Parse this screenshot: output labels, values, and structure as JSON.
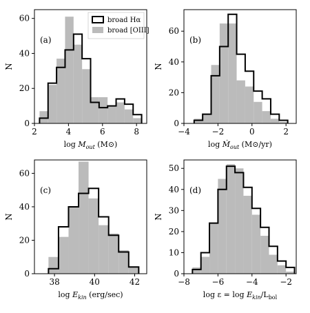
{
  "colors": {
    "halpha": "#000000",
    "oiii": "#bbbbbb"
  },
  "legend": {
    "halpha": "broad Hα",
    "oiii": "broad [OIII]"
  },
  "chart_data": [
    {
      "type": "histogram",
      "label": "(a)",
      "xlabel": "log M",
      "xsub": "out",
      "xunit": " (M⊙)",
      "hasdot": false,
      "ylabel": "N",
      "xlim": [
        2,
        8.6
      ],
      "ylim": [
        0,
        65
      ],
      "xticks": [
        2,
        4,
        6,
        8
      ],
      "yticks": [
        0,
        20,
        40,
        60
      ],
      "legend": true,
      "legend_position": "top-right",
      "edges": [
        2.3,
        2.8,
        3.3,
        3.8,
        4.3,
        4.8,
        5.3,
        5.8,
        6.3,
        6.8,
        7.3,
        7.8,
        8.3
      ],
      "series": [
        {
          "key": "oiii",
          "name": "broad [OIII]",
          "values": [
            7,
            22,
            37,
            61,
            45,
            31,
            15,
            15,
            10,
            12,
            8,
            3
          ]
        },
        {
          "key": "halpha",
          "name": "broad Hα",
          "values": [
            3,
            23,
            32,
            42,
            51,
            37,
            12,
            9,
            10,
            14,
            11,
            5
          ]
        }
      ]
    },
    {
      "type": "histogram",
      "label": "(b)",
      "xlabel": "log Ṁ",
      "xsub": "out",
      "xunit": " (M⊙/yr)",
      "hasdot": true,
      "ylabel": "N",
      "xlim": [
        -4,
        2.6
      ],
      "ylim": [
        0,
        74
      ],
      "xticks": [
        -4,
        -2,
        0,
        2
      ],
      "yticks": [
        0,
        20,
        40,
        60
      ],
      "legend": false,
      "edges": [
        -3.4,
        -2.9,
        -2.4,
        -1.9,
        -1.4,
        -0.9,
        -0.4,
        0.1,
        0.6,
        1.1,
        1.6,
        2.1
      ],
      "series": [
        {
          "key": "oiii",
          "name": "broad [OIII]",
          "values": [
            3,
            6,
            38,
            65,
            65,
            28,
            24,
            14,
            8,
            3,
            1
          ]
        },
        {
          "key": "halpha",
          "name": "broad Hα",
          "values": [
            2,
            6,
            31,
            50,
            71,
            45,
            34,
            21,
            16,
            6,
            2
          ]
        }
      ]
    },
    {
      "type": "histogram",
      "label": "(c)",
      "xlabel": "log E",
      "xsub": "kin",
      "xunit": " (erg/sec)",
      "hasdot": true,
      "ylabel": "N",
      "xlim": [
        37,
        42.6
      ],
      "ylim": [
        0,
        68
      ],
      "xticks": [
        38,
        40,
        42
      ],
      "yticks": [
        0,
        20,
        40,
        60
      ],
      "legend": false,
      "edges": [
        37.7,
        38.2,
        38.7,
        39.2,
        39.7,
        40.2,
        40.7,
        41.2,
        41.7,
        42.2
      ],
      "series": [
        {
          "key": "oiii",
          "name": "broad [OIII]",
          "values": [
            10,
            22,
            40,
            67,
            45,
            29,
            24,
            14,
            4
          ]
        },
        {
          "key": "halpha",
          "name": "broad Hα",
          "values": [
            3,
            28,
            40,
            48,
            51,
            34,
            23,
            13,
            4
          ]
        }
      ]
    },
    {
      "type": "histogram",
      "label": "(d)",
      "xlabel": "log ε =  log E",
      "xsub": "kin",
      "xunit": "/L",
      "xunitsub": "bol",
      "hasdot": true,
      "ylabel": "N",
      "xlim": [
        -8,
        -1.4
      ],
      "ylim": [
        0,
        54
      ],
      "xticks": [
        -8,
        -6,
        -4,
        -2
      ],
      "yticks": [
        0,
        10,
        20,
        30,
        40,
        50
      ],
      "legend": false,
      "edges": [
        -7.5,
        -7.0,
        -6.5,
        -6.0,
        -5.5,
        -5.0,
        -4.5,
        -4.0,
        -3.5,
        -3.0,
        -2.5,
        -2.0,
        -1.5
      ],
      "series": [
        {
          "key": "oiii",
          "name": "broad [OIII]",
          "values": [
            3,
            8,
            24,
            45,
            52,
            50,
            37,
            28,
            18,
            9,
            4,
            1
          ]
        },
        {
          "key": "halpha",
          "name": "broad Hα",
          "values": [
            2,
            10,
            24,
            40,
            51,
            48,
            41,
            31,
            22,
            13,
            6,
            3
          ]
        }
      ]
    }
  ]
}
